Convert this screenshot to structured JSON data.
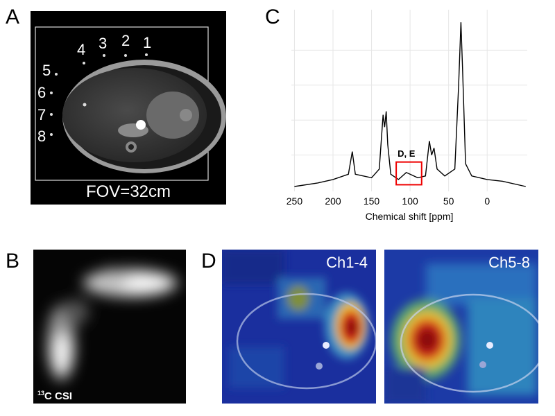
{
  "panels": {
    "a": {
      "letter": "A",
      "fov_label": "FOV=32cm",
      "coil_labels": [
        "1",
        "2",
        "3",
        "4",
        "5",
        "6",
        "7",
        "8"
      ]
    },
    "b": {
      "letter": "B",
      "csi_sup": "13",
      "csi_text": "C CSI"
    },
    "c": {
      "letter": "C",
      "annotation": "D, E"
    },
    "d": {
      "letter": "D",
      "left_title": "Ch1-4",
      "right_title": "Ch5-8"
    }
  },
  "chart_data": {
    "type": "line",
    "title": "",
    "xlabel": "Chemical shift [ppm]",
    "ylabel": "",
    "x_reversed": true,
    "xlim": [
      254,
      -52
    ],
    "ylim": [
      0,
      1
    ],
    "grid": true,
    "xticks": [
      "250",
      "200",
      "150",
      "100",
      "50",
      "0"
    ],
    "series": [
      {
        "values": [
          {
            "x": 250,
            "y": 0.02
          },
          {
            "x": 220,
            "y": 0.04
          },
          {
            "x": 200,
            "y": 0.06
          },
          {
            "x": 180,
            "y": 0.09
          },
          {
            "x": 175,
            "y": 0.22
          },
          {
            "x": 171,
            "y": 0.09
          },
          {
            "x": 150,
            "y": 0.07
          },
          {
            "x": 140,
            "y": 0.12
          },
          {
            "x": 135,
            "y": 0.43
          },
          {
            "x": 133,
            "y": 0.36
          },
          {
            "x": 131,
            "y": 0.45
          },
          {
            "x": 129,
            "y": 0.26
          },
          {
            "x": 125,
            "y": 0.09
          },
          {
            "x": 115,
            "y": 0.06
          },
          {
            "x": 105,
            "y": 0.1
          },
          {
            "x": 100,
            "y": 0.09
          },
          {
            "x": 90,
            "y": 0.07
          },
          {
            "x": 80,
            "y": 0.08
          },
          {
            "x": 75,
            "y": 0.28
          },
          {
            "x": 72,
            "y": 0.2
          },
          {
            "x": 69,
            "y": 0.24
          },
          {
            "x": 65,
            "y": 0.12
          },
          {
            "x": 55,
            "y": 0.08
          },
          {
            "x": 42,
            "y": 0.12
          },
          {
            "x": 37,
            "y": 0.6
          },
          {
            "x": 34,
            "y": 0.96
          },
          {
            "x": 32,
            "y": 0.7
          },
          {
            "x": 28,
            "y": 0.15
          },
          {
            "x": 20,
            "y": 0.08
          },
          {
            "x": 0,
            "y": 0.06
          },
          {
            "x": -20,
            "y": 0.05
          },
          {
            "x": -50,
            "y": 0.02
          }
        ]
      }
    ]
  }
}
